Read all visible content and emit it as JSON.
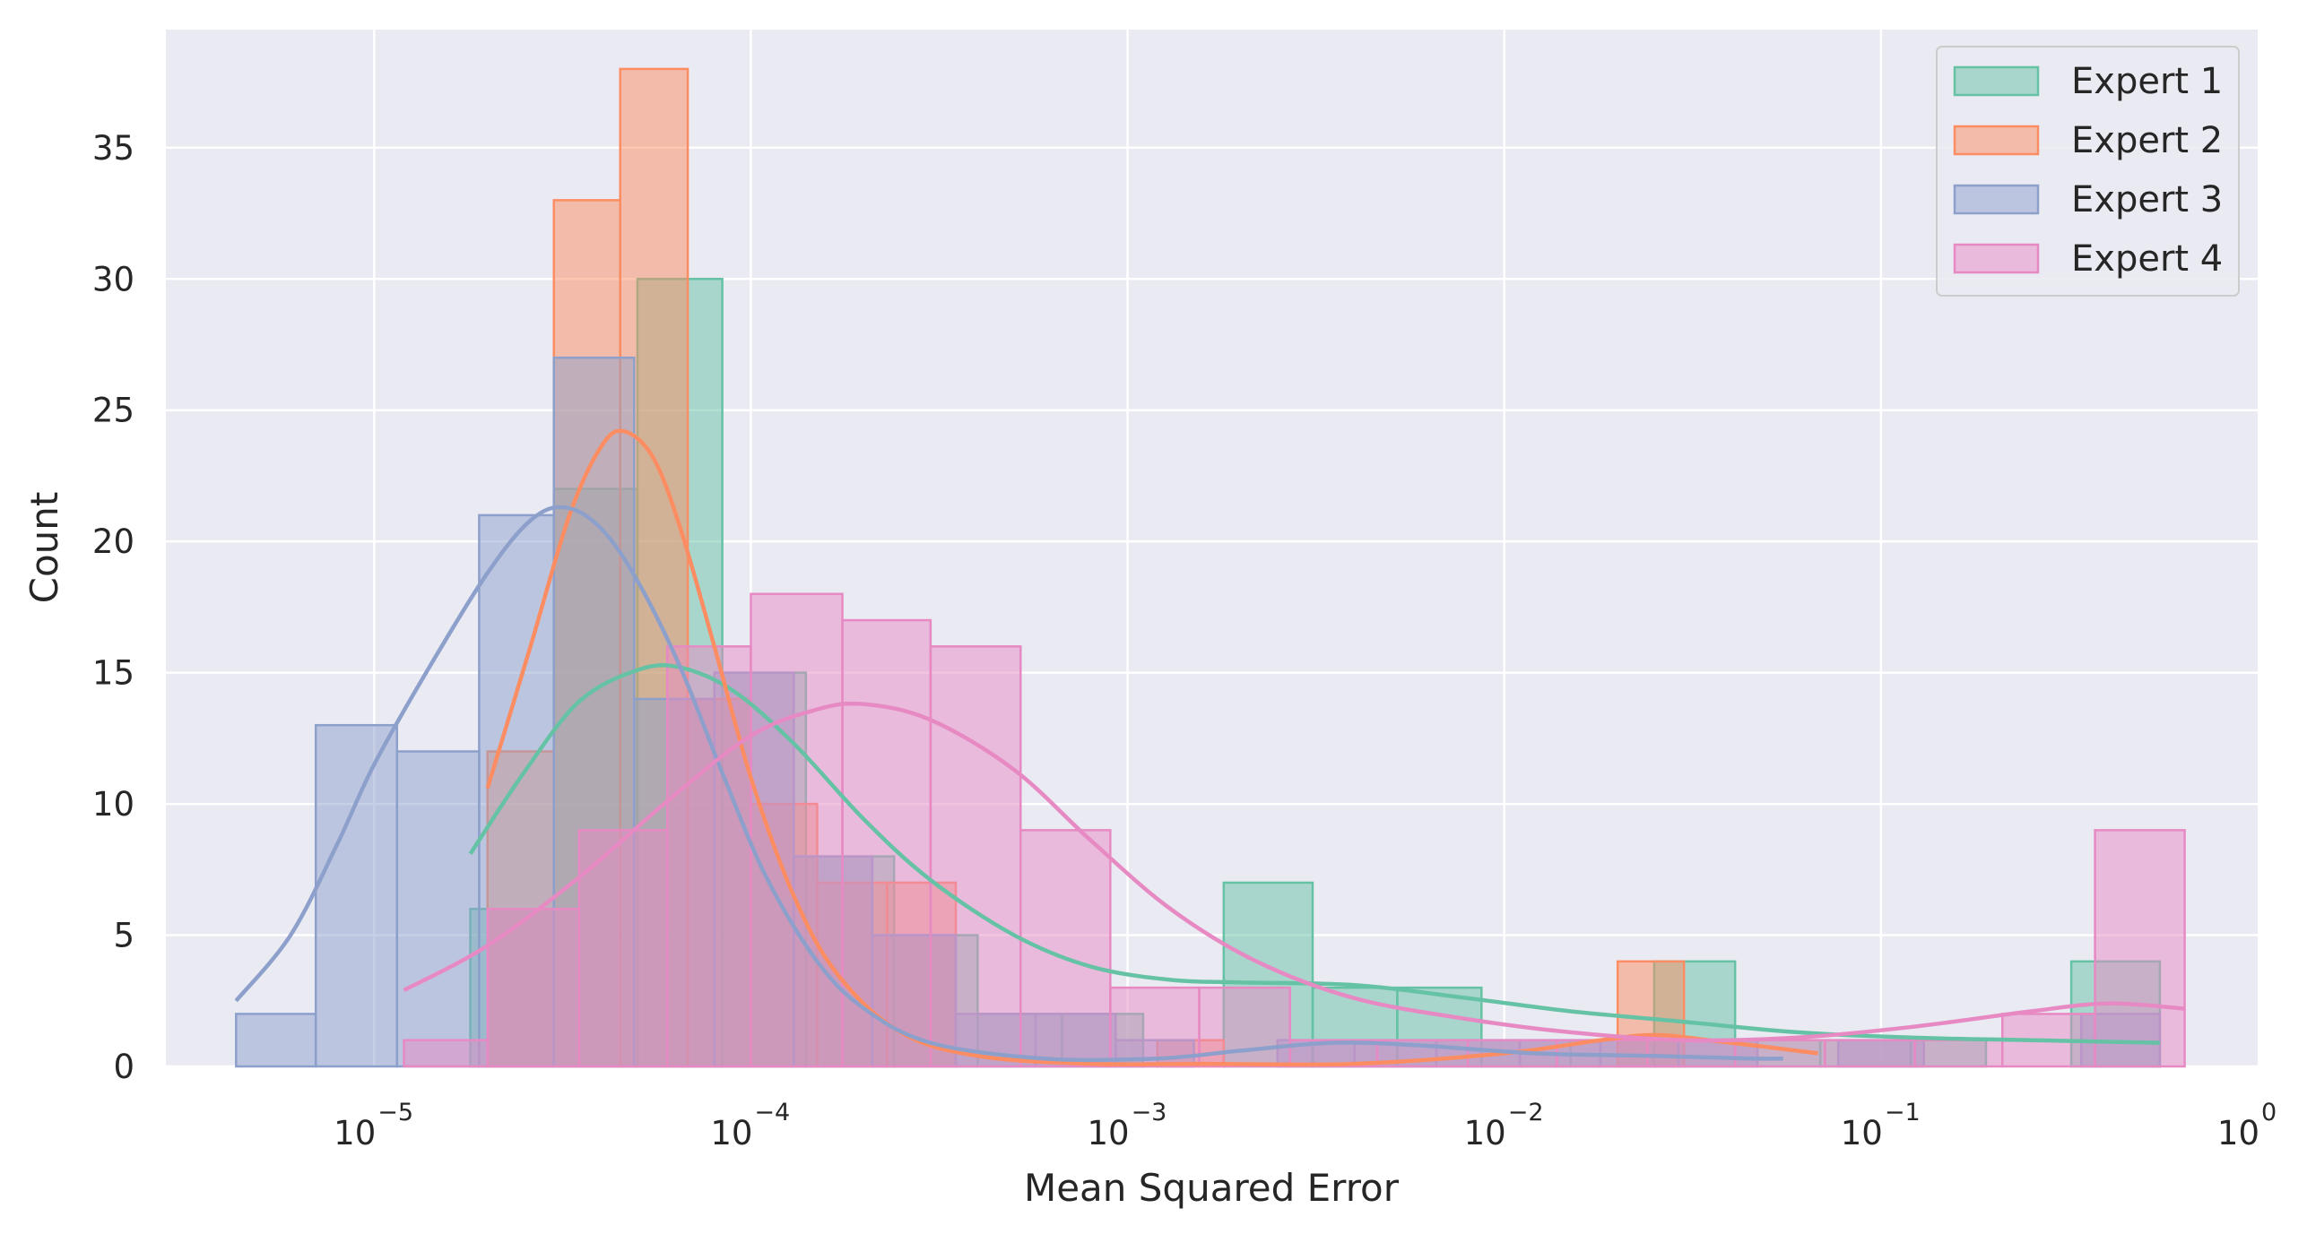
{
  "chart_data": {
    "type": "histogram",
    "title": "",
    "xlabel": "Mean Squared Error",
    "ylabel": "Count",
    "x_scale": "log",
    "xlim": [
      2.8e-06,
      1.0
    ],
    "ylim": [
      0,
      39.5
    ],
    "x_ticks": [
      {
        "value": 1e-05,
        "base": "10",
        "exp": "−5"
      },
      {
        "value": 0.0001,
        "base": "10",
        "exp": "−4"
      },
      {
        "value": 0.001,
        "base": "10",
        "exp": "−3"
      },
      {
        "value": 0.01,
        "base": "10",
        "exp": "−2"
      },
      {
        "value": 0.1,
        "base": "10",
        "exp": "−1"
      },
      {
        "value": 1.0,
        "base": "10",
        "exp": "0"
      }
    ],
    "y_ticks": [
      "0",
      "5",
      "10",
      "15",
      "20",
      "25",
      "30",
      "35"
    ],
    "grid": true,
    "legend_position": "top-right",
    "series": [
      {
        "name": "Expert 1",
        "color": "#66c2a5",
        "bins": [
          {
            "x0": 1.8e-05,
            "x1": 3e-05,
            "count": 6
          },
          {
            "x0": 3e-05,
            "x1": 5e-05,
            "count": 22
          },
          {
            "x0": 5e-05,
            "x1": 8.4e-05,
            "count": 30
          },
          {
            "x0": 8.4e-05,
            "x1": 0.00014,
            "count": 15
          },
          {
            "x0": 0.00014,
            "x1": 0.00024,
            "count": 8
          },
          {
            "x0": 0.00024,
            "x1": 0.0004,
            "count": 5
          },
          {
            "x0": 0.0004,
            "x1": 0.00067,
            "count": 2
          },
          {
            "x0": 0.00067,
            "x1": 0.0011,
            "count": 2
          },
          {
            "x0": 0.0011,
            "x1": 0.0018,
            "count": 0
          },
          {
            "x0": 0.0018,
            "x1": 0.0031,
            "count": 7
          },
          {
            "x0": 0.0031,
            "x1": 0.0052,
            "count": 3
          },
          {
            "x0": 0.0052,
            "x1": 0.0087,
            "count": 3
          },
          {
            "x0": 0.0087,
            "x1": 0.015,
            "count": 1
          },
          {
            "x0": 0.015,
            "x1": 0.025,
            "count": 1
          },
          {
            "x0": 0.025,
            "x1": 0.041,
            "count": 4
          },
          {
            "x0": 0.041,
            "x1": 0.069,
            "count": 1
          },
          {
            "x0": 0.069,
            "x1": 0.12,
            "count": 1
          },
          {
            "x0": 0.12,
            "x1": 0.19,
            "count": 1
          },
          {
            "x0": 0.19,
            "x1": 0.32,
            "count": 0
          },
          {
            "x0": 0.32,
            "x1": 0.55,
            "count": 4
          }
        ],
        "kde": [
          {
            "x": 1.8e-05,
            "y": 8.1
          },
          {
            "x": 2.5e-05,
            "y": 11.2
          },
          {
            "x": 3.5e-05,
            "y": 13.9
          },
          {
            "x": 5e-05,
            "y": 15.1
          },
          {
            "x": 6.5e-05,
            "y": 15.2
          },
          {
            "x": 9e-05,
            "y": 14.3
          },
          {
            "x": 0.00013,
            "y": 12.3
          },
          {
            "x": 0.0002,
            "y": 9.4
          },
          {
            "x": 0.0003,
            "y": 7.1
          },
          {
            "x": 0.0005,
            "y": 5.0
          },
          {
            "x": 0.0008,
            "y": 3.8
          },
          {
            "x": 0.0013,
            "y": 3.3
          },
          {
            "x": 0.002,
            "y": 3.2
          },
          {
            "x": 0.004,
            "y": 3.1
          },
          {
            "x": 0.008,
            "y": 2.6
          },
          {
            "x": 0.015,
            "y": 2.1
          },
          {
            "x": 0.03,
            "y": 1.7
          },
          {
            "x": 0.06,
            "y": 1.3
          },
          {
            "x": 0.12,
            "y": 1.1
          },
          {
            "x": 0.25,
            "y": 1.0
          },
          {
            "x": 0.55,
            "y": 0.9
          }
        ]
      },
      {
        "name": "Expert 2",
        "color": "#fc8d62",
        "bins": [
          {
            "x0": 2e-05,
            "x1": 3e-05,
            "count": 12
          },
          {
            "x0": 3e-05,
            "x1": 4.5e-05,
            "count": 33
          },
          {
            "x0": 4.5e-05,
            "x1": 6.8e-05,
            "count": 38
          },
          {
            "x0": 6.8e-05,
            "x1": 0.0001,
            "count": 14
          },
          {
            "x0": 0.0001,
            "x1": 0.00015,
            "count": 10
          },
          {
            "x0": 0.00015,
            "x1": 0.00023,
            "count": 7
          },
          {
            "x0": 0.00023,
            "x1": 0.00035,
            "count": 7
          },
          {
            "x0": 0.00035,
            "x1": 0.00052,
            "count": 0
          },
          {
            "x0": 0.00052,
            "x1": 0.00078,
            "count": 0
          },
          {
            "x0": 0.00078,
            "x1": 0.0012,
            "count": 0
          },
          {
            "x0": 0.0012,
            "x1": 0.0018,
            "count": 1
          },
          {
            "x0": 0.0018,
            "x1": 0.0027,
            "count": 0
          },
          {
            "x0": 0.0027,
            "x1": 0.004,
            "count": 0
          },
          {
            "x0": 0.004,
            "x1": 0.006,
            "count": 0
          },
          {
            "x0": 0.006,
            "x1": 0.009,
            "count": 0
          },
          {
            "x0": 0.009,
            "x1": 0.0135,
            "count": 0
          },
          {
            "x0": 0.0135,
            "x1": 0.02,
            "count": 0
          },
          {
            "x0": 0.02,
            "x1": 0.03,
            "count": 4
          },
          {
            "x0": 0.03,
            "x1": 0.045,
            "count": 0
          },
          {
            "x0": 0.045,
            "x1": 0.068,
            "count": 0
          }
        ],
        "kde": [
          {
            "x": 2e-05,
            "y": 10.6
          },
          {
            "x": 2.6e-05,
            "y": 16.0
          },
          {
            "x": 3.3e-05,
            "y": 21.0
          },
          {
            "x": 4e-05,
            "y": 23.6
          },
          {
            "x": 4.6e-05,
            "y": 24.2
          },
          {
            "x": 5.5e-05,
            "y": 23.2
          },
          {
            "x": 6.5e-05,
            "y": 20.5
          },
          {
            "x": 8e-05,
            "y": 16.0
          },
          {
            "x": 0.0001,
            "y": 11.0
          },
          {
            "x": 0.00013,
            "y": 6.5
          },
          {
            "x": 0.00017,
            "y": 3.5
          },
          {
            "x": 0.00025,
            "y": 1.3
          },
          {
            "x": 0.0004,
            "y": 0.4
          },
          {
            "x": 0.0008,
            "y": 0.1
          },
          {
            "x": 0.0016,
            "y": 0.1
          },
          {
            "x": 0.004,
            "y": 0.1
          },
          {
            "x": 0.01,
            "y": 0.5
          },
          {
            "x": 0.018,
            "y": 1.0
          },
          {
            "x": 0.025,
            "y": 1.2
          },
          {
            "x": 0.035,
            "y": 1.0
          },
          {
            "x": 0.068,
            "y": 0.5
          }
        ]
      },
      {
        "name": "Expert 3",
        "color": "#8da0cb",
        "bins": [
          {
            "x0": 4.3e-06,
            "x1": 7e-06,
            "count": 2
          },
          {
            "x0": 7e-06,
            "x1": 1.15e-05,
            "count": 13
          },
          {
            "x0": 1.15e-05,
            "x1": 1.9e-05,
            "count": 12
          },
          {
            "x0": 1.9e-05,
            "x1": 3e-05,
            "count": 21
          },
          {
            "x0": 3e-05,
            "x1": 4.9e-05,
            "count": 27
          },
          {
            "x0": 4.9e-05,
            "x1": 8e-05,
            "count": 14
          },
          {
            "x0": 8e-05,
            "x1": 0.00013,
            "count": 15
          },
          {
            "x0": 0.00013,
            "x1": 0.00021,
            "count": 8
          },
          {
            "x0": 0.00021,
            "x1": 0.00035,
            "count": 5
          },
          {
            "x0": 0.00035,
            "x1": 0.00057,
            "count": 2
          },
          {
            "x0": 0.00057,
            "x1": 0.00093,
            "count": 2
          },
          {
            "x0": 0.00093,
            "x1": 0.0015,
            "count": 1
          },
          {
            "x0": 0.0015,
            "x1": 0.0025,
            "count": 0
          },
          {
            "x0": 0.0025,
            "x1": 0.004,
            "count": 1
          },
          {
            "x0": 0.004,
            "x1": 0.0066,
            "count": 1
          },
          {
            "x0": 0.0066,
            "x1": 0.011,
            "count": 1
          },
          {
            "x0": 0.011,
            "x1": 0.018,
            "count": 1
          },
          {
            "x0": 0.018,
            "x1": 0.029,
            "count": 1
          },
          {
            "x0": 0.029,
            "x1": 0.047,
            "count": 1
          },
          {
            "x0": 0.047,
            "x1": 0.077,
            "count": 0
          },
          {
            "x0": 0.077,
            "x1": 0.13,
            "count": 1
          },
          {
            "x0": 0.13,
            "x1": 0.21,
            "count": 0
          },
          {
            "x0": 0.21,
            "x1": 0.34,
            "count": 0
          },
          {
            "x0": 0.34,
            "x1": 0.55,
            "count": 2
          }
        ],
        "kde": [
          {
            "x": 4.3e-06,
            "y": 2.5
          },
          {
            "x": 6e-06,
            "y": 5.0
          },
          {
            "x": 8e-06,
            "y": 8.5
          },
          {
            "x": 1e-05,
            "y": 11.5
          },
          {
            "x": 1.4e-05,
            "y": 15.2
          },
          {
            "x": 2e-05,
            "y": 18.8
          },
          {
            "x": 2.6e-05,
            "y": 20.8
          },
          {
            "x": 3.2e-05,
            "y": 21.3
          },
          {
            "x": 4e-05,
            "y": 20.5
          },
          {
            "x": 5e-05,
            "y": 18.5
          },
          {
            "x": 6.5e-05,
            "y": 15.2
          },
          {
            "x": 8.5e-05,
            "y": 11.0
          },
          {
            "x": 0.00011,
            "y": 7.2
          },
          {
            "x": 0.00015,
            "y": 4.0
          },
          {
            "x": 0.0002,
            "y": 2.2
          },
          {
            "x": 0.0003,
            "y": 0.9
          },
          {
            "x": 0.0006,
            "y": 0.3
          },
          {
            "x": 0.0012,
            "y": 0.3
          },
          {
            "x": 0.002,
            "y": 0.6
          },
          {
            "x": 0.0035,
            "y": 0.9
          },
          {
            "x": 0.006,
            "y": 0.8
          },
          {
            "x": 0.012,
            "y": 0.5
          },
          {
            "x": 0.025,
            "y": 0.4
          },
          {
            "x": 0.045,
            "y": 0.3
          },
          {
            "x": 0.055,
            "y": 0.3
          }
        ]
      },
      {
        "name": "Expert 4",
        "color": "#e78ac3",
        "bins": [
          {
            "x0": 1.2e-05,
            "x1": 2e-05,
            "count": 1
          },
          {
            "x0": 2e-05,
            "x1": 3.5e-05,
            "count": 6
          },
          {
            "x0": 3.5e-05,
            "x1": 6e-05,
            "count": 9
          },
          {
            "x0": 6e-05,
            "x1": 0.0001,
            "count": 16
          },
          {
            "x0": 0.0001,
            "x1": 0.000175,
            "count": 18
          },
          {
            "x0": 0.000175,
            "x1": 0.0003,
            "count": 17
          },
          {
            "x0": 0.0003,
            "x1": 0.00052,
            "count": 16
          },
          {
            "x0": 0.00052,
            "x1": 0.0009,
            "count": 9
          },
          {
            "x0": 0.0009,
            "x1": 0.00155,
            "count": 3
          },
          {
            "x0": 0.00155,
            "x1": 0.0027,
            "count": 3
          },
          {
            "x0": 0.0027,
            "x1": 0.0046,
            "count": 1
          },
          {
            "x0": 0.0046,
            "x1": 0.008,
            "count": 1
          },
          {
            "x0": 0.008,
            "x1": 0.0138,
            "count": 1
          },
          {
            "x0": 0.0138,
            "x1": 0.024,
            "count": 1
          },
          {
            "x0": 0.024,
            "x1": 0.041,
            "count": 1
          },
          {
            "x0": 0.041,
            "x1": 0.071,
            "count": 1
          },
          {
            "x0": 0.071,
            "x1": 0.123,
            "count": 1
          },
          {
            "x0": 0.123,
            "x1": 0.21,
            "count": 1
          },
          {
            "x0": 0.21,
            "x1": 0.37,
            "count": 2
          },
          {
            "x0": 0.37,
            "x1": 0.64,
            "count": 9
          }
        ],
        "kde": [
          {
            "x": 1.2e-05,
            "y": 2.9
          },
          {
            "x": 2e-05,
            "y": 4.6
          },
          {
            "x": 3.5e-05,
            "y": 7.2
          },
          {
            "x": 6e-05,
            "y": 10.1
          },
          {
            "x": 0.0001,
            "y": 12.6
          },
          {
            "x": 0.00015,
            "y": 13.6
          },
          {
            "x": 0.0002,
            "y": 13.8
          },
          {
            "x": 0.0003,
            "y": 13.2
          },
          {
            "x": 0.0005,
            "y": 11.3
          },
          {
            "x": 0.0008,
            "y": 8.6
          },
          {
            "x": 0.0013,
            "y": 6.0
          },
          {
            "x": 0.0022,
            "y": 4.0
          },
          {
            "x": 0.004,
            "y": 2.6
          },
          {
            "x": 0.008,
            "y": 1.8
          },
          {
            "x": 0.015,
            "y": 1.3
          },
          {
            "x": 0.03,
            "y": 1.0
          },
          {
            "x": 0.06,
            "y": 1.1
          },
          {
            "x": 0.12,
            "y": 1.5
          },
          {
            "x": 0.25,
            "y": 2.1
          },
          {
            "x": 0.4,
            "y": 2.4
          },
          {
            "x": 0.64,
            "y": 2.2
          }
        ]
      }
    ]
  }
}
